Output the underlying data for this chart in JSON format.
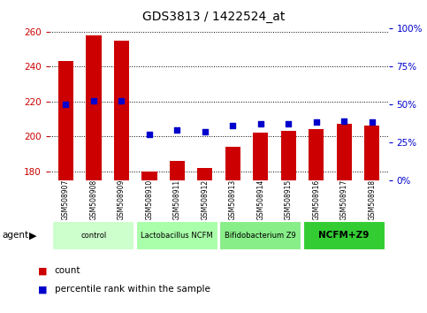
{
  "title": "GDS3813 / 1422524_at",
  "samples": [
    "GSM508907",
    "GSM508908",
    "GSM508909",
    "GSM508910",
    "GSM508911",
    "GSM508912",
    "GSM508913",
    "GSM508914",
    "GSM508915",
    "GSM508916",
    "GSM508917",
    "GSM508918"
  ],
  "counts": [
    243,
    258,
    255,
    180,
    186,
    182,
    194,
    202,
    203,
    204,
    207,
    206
  ],
  "percentiles": [
    50,
    52,
    52,
    30,
    33,
    32,
    36,
    37,
    37,
    38,
    39,
    38
  ],
  "ylim_left": [
    175,
    262
  ],
  "ylim_right": [
    0,
    100
  ],
  "yticks_left": [
    180,
    200,
    220,
    240,
    260
  ],
  "yticks_right": [
    0,
    25,
    50,
    75,
    100
  ],
  "bar_color": "#cc0000",
  "dot_color": "#0000cc",
  "groups": [
    {
      "label": "control",
      "start": 0,
      "end": 3,
      "color": "#ccffcc"
    },
    {
      "label": "Lactobacillus NCFM",
      "start": 3,
      "end": 6,
      "color": "#aaffaa"
    },
    {
      "label": "Bifidobacterium Z9",
      "start": 6,
      "end": 9,
      "color": "#88ee88"
    },
    {
      "label": "NCFM+Z9",
      "start": 9,
      "end": 12,
      "color": "#33cc33"
    }
  ],
  "tick_color_left": "#cc0000",
  "tick_color_right": "#0000cc",
  "background_xtick": "#bbbbbb",
  "fig_width": 4.83,
  "fig_height": 3.54,
  "dpi": 100
}
